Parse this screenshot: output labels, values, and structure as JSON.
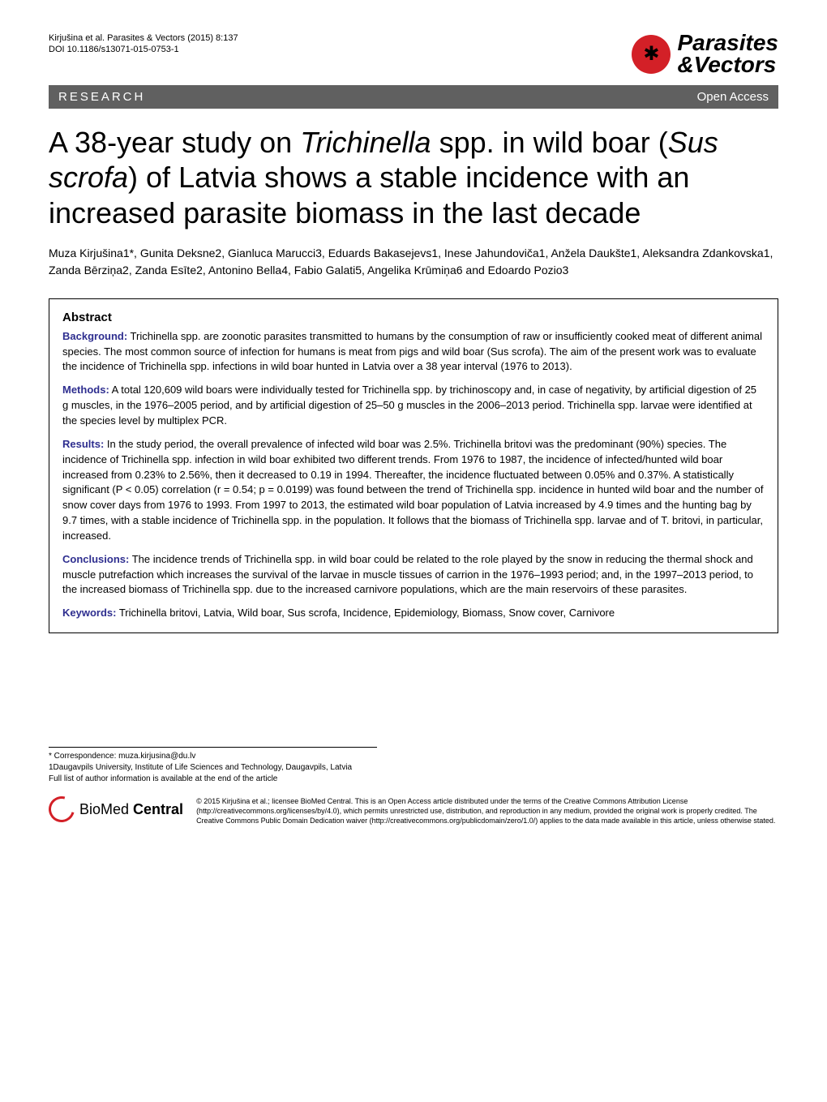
{
  "header": {
    "citation_line1": "Kirjušina et al. Parasites & Vectors  (2015) 8:137",
    "citation_line2": "DOI 10.1186/s13071-015-0753-1",
    "journal_name_line1": "Parasites",
    "journal_name_line2": "&Vectors",
    "journal_logo_glyph": "✱"
  },
  "section_bar": {
    "left": "RESEARCH",
    "right": "Open Access"
  },
  "title": {
    "pre1": "A 38-year study on ",
    "italic1": "Trichinella",
    "mid1": " spp. in wild boar (",
    "italic2": "Sus scrofa",
    "post1": ") of Latvia shows a stable incidence with an increased parasite biomass in the last decade"
  },
  "authors": {
    "line": "Muza Kirjušina1*, Gunita Deksne2, Gianluca Marucci3, Eduards Bakasejevs1, Inese Jahundoviča1, Anžela Daukšte1, Aleksandra Zdankovska1, Zanda Bērziņa2, Zanda Esīte2, Antonino Bella4, Fabio Galati5, Angelika Krūmiņa6 and Edoardo Pozio3"
  },
  "abstract": {
    "heading": "Abstract",
    "background_label": "Background:",
    "background_text": " Trichinella spp. are zoonotic parasites transmitted to humans by the consumption of raw or insufficiently cooked meat of different animal species. The most common source of infection for humans is meat from pigs and wild boar (Sus scrofa). The aim of the present work was to evaluate the incidence of Trichinella spp. infections in wild boar hunted in Latvia over a 38 year interval (1976 to 2013).",
    "methods_label": "Methods:",
    "methods_text": " A total 120,609 wild boars were individually tested for Trichinella spp. by trichinoscopy and, in case of negativity, by artificial digestion of 25 g muscles, in the 1976–2005 period, and by artificial digestion of 25–50 g muscles in the 2006–2013 period. Trichinella spp. larvae were identified at the species level by multiplex PCR.",
    "results_label": "Results:",
    "results_text": " In the study period, the overall prevalence of infected wild boar was 2.5%. Trichinella britovi was the predominant (90%) species. The incidence of Trichinella spp. infection in wild boar exhibited two different trends. From 1976 to 1987, the incidence of infected/hunted wild boar increased from 0.23% to 2.56%, then it decreased to 0.19 in 1994. Thereafter, the incidence fluctuated between 0.05% and 0.37%. A statistically significant (P < 0.05) correlation (r = 0.54; p = 0.0199) was found between the trend of Trichinella spp. incidence in hunted wild boar and the number of snow cover days from 1976 to 1993. From 1997 to 2013, the estimated wild boar population of Latvia increased by 4.9 times and the hunting bag by 9.7 times, with a stable incidence of Trichinella spp. in the population. It follows that the biomass of Trichinella spp. larvae and of T. britovi, in particular, increased.",
    "conclusions_label": "Conclusions:",
    "conclusions_text": " The incidence trends of Trichinella spp. in wild boar could be related to the role played by the snow in reducing the thermal shock and muscle putrefaction which increases the survival of the larvae in muscle tissues of carrion in the 1976–1993 period; and, in the 1997–2013 period, to the increased biomass of Trichinella spp. due to the increased carnivore populations, which are the main reservoirs of these parasites.",
    "keywords_label": "Keywords:",
    "keywords_text": " Trichinella britovi, Latvia, Wild boar, Sus scrofa, Incidence, Epidemiology, Biomass, Snow cover, Carnivore"
  },
  "footer": {
    "correspondence_line1": "* Correspondence: muza.kirjusina@du.lv",
    "correspondence_line2": "1Daugavpils University, Institute of Life Sciences and Technology, Daugavpils, Latvia",
    "correspondence_line3": "Full list of author information is available at the end of the article",
    "bmc_text": "BioMed Central",
    "license": "© 2015 Kirjušina et al.; licensee BioMed Central. This is an Open Access article distributed under the terms of the Creative Commons Attribution License (http://creativecommons.org/licenses/by/4.0), which permits unrestricted use, distribution, and reproduction in any medium, provided the original work is properly credited. The Creative Commons Public Domain Dedication waiver (http://creativecommons.org/publicdomain/zero/1.0/) applies to the data made available in this article, unless otherwise stated."
  },
  "colors": {
    "accent_red": "#d32027",
    "bar_gray": "#606060",
    "label_blue": "#2e2e8f"
  }
}
